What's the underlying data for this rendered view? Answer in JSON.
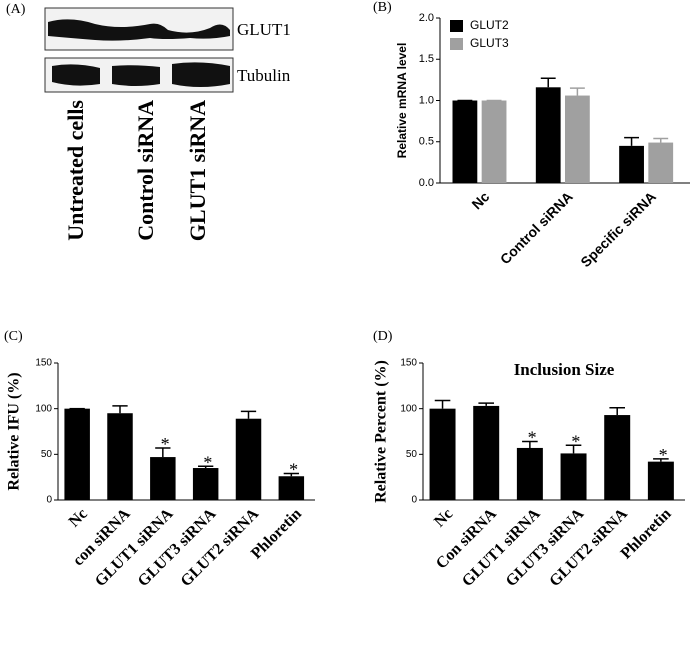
{
  "blot": {
    "panel": "(A)",
    "bands": [
      "GLUT1",
      "Tubulin"
    ],
    "lanes": [
      "Untreated cells",
      "Control siRNA",
      "GLUT1 siRNA"
    ]
  },
  "chart_data": [
    {
      "type": "bar",
      "panel": "(B)",
      "ylabel": "Relative mRNA level",
      "categories": [
        "Nc",
        "Control siRNA",
        "Specific siRNA"
      ],
      "series": [
        {
          "name": "GLUT2",
          "color": "#000000",
          "values": [
            1.0,
            1.16,
            0.45
          ],
          "errors": [
            0,
            0.11,
            0.1
          ]
        },
        {
          "name": "GLUT3",
          "color": "#a0a0a0",
          "values": [
            1.0,
            1.06,
            0.49
          ],
          "errors": [
            0,
            0.09,
            0.05
          ]
        }
      ],
      "ylim": [
        0,
        2
      ],
      "yticks": [
        {
          "value": 0,
          "label": "0.0"
        },
        0.5,
        {
          "value": 1,
          "label": "1.0"
        },
        1.5,
        {
          "value": 2,
          "label": "2.0"
        }
      ],
      "legend": "top-left"
    },
    {
      "type": "bar",
      "panel": "(C)",
      "ylabel": "Relative IFU (%)",
      "categories": [
        "Nc",
        "con siRNA",
        "GLUT1 siRNA",
        "GLUT3 siRNA",
        "GLUT2 siRNA",
        "Phloretin"
      ],
      "values": [
        100,
        95,
        47,
        35,
        89,
        26
      ],
      "errors": [
        0,
        8,
        10,
        2,
        8,
        3
      ],
      "color": "#000000",
      "annotations": [
        {
          "category": "GLUT1 siRNA",
          "text": "*"
        },
        {
          "category": "GLUT3 siRNA",
          "text": "*"
        },
        {
          "category": "Phloretin",
          "text": "*"
        }
      ],
      "ylim": [
        0,
        150
      ],
      "yticks": [
        0,
        50,
        100,
        150
      ]
    },
    {
      "type": "bar",
      "panel": "(D)",
      "title": "Inclusion Size",
      "ylabel": "Relative Percent (%)",
      "categories": [
        "Nc",
        "Con siRNA",
        "GLUT1 siRNA",
        "GLUT3 siRNA",
        "GLUT2 siRNA",
        "Phloretin"
      ],
      "values": [
        100,
        103,
        57,
        51,
        93,
        42
      ],
      "errors": [
        9,
        3,
        7,
        9,
        8,
        3
      ],
      "color": "#000000",
      "annotations": [
        {
          "category": "GLUT1 siRNA",
          "text": "*"
        },
        {
          "category": "GLUT3 siRNA",
          "text": "*"
        },
        {
          "category": "Phloretin",
          "text": "*"
        }
      ],
      "ylim": [
        0,
        150
      ],
      "yticks": [
        0,
        50,
        100,
        150
      ]
    }
  ]
}
